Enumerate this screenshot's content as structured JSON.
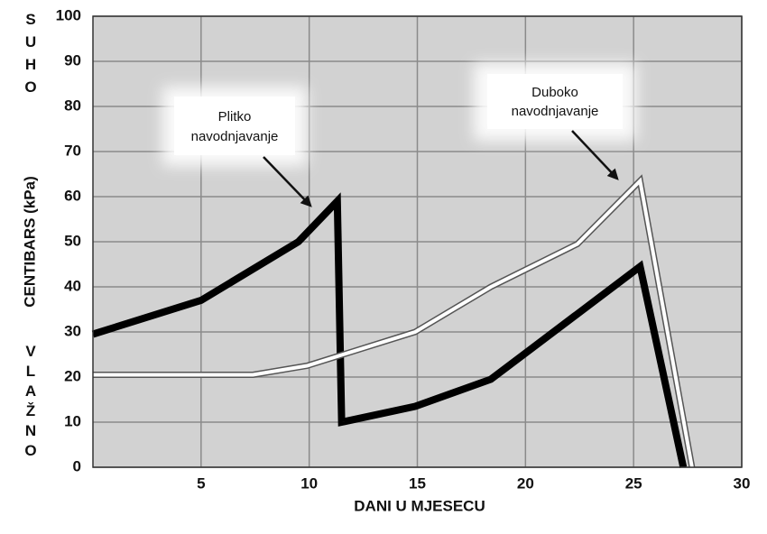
{
  "chart_data": {
    "type": "line",
    "xlabel": "DANI U MJESECU",
    "ylabel": "CENTIBARS (kPa)",
    "ylabel_top": "SUHO",
    "ylabel_bottom": "VLAŽNO",
    "xlim": [
      0,
      30
    ],
    "xticks": [
      5,
      10,
      15,
      20,
      25,
      30
    ],
    "ylim": [
      0,
      100
    ],
    "yticks": [
      0,
      10,
      20,
      30,
      40,
      50,
      60,
      70,
      80,
      90,
      100
    ],
    "grid": true,
    "series": [
      {
        "color": "#000000",
        "x": [
          0,
          5,
          9.5,
          11.3,
          11.5,
          14.9,
          18.4,
          25.3,
          27.3
        ],
        "values": [
          29.5,
          37,
          50,
          59,
          10,
          13.5,
          19.5,
          44.5,
          0
        ]
      },
      {
        "color": "#ffffff",
        "x": [
          0,
          7.4,
          9.9,
          14.9,
          18.4,
          22.4,
          25.3,
          27.7
        ],
        "values": [
          20.5,
          20.5,
          22.5,
          30,
          40,
          49.5,
          63.5,
          0
        ]
      }
    ],
    "annotations": [
      {
        "lines": [
          "Plitko",
          "navodnjavanje"
        ]
      },
      {
        "lines": [
          "Duboko",
          "navodnjavanje"
        ]
      }
    ]
  }
}
